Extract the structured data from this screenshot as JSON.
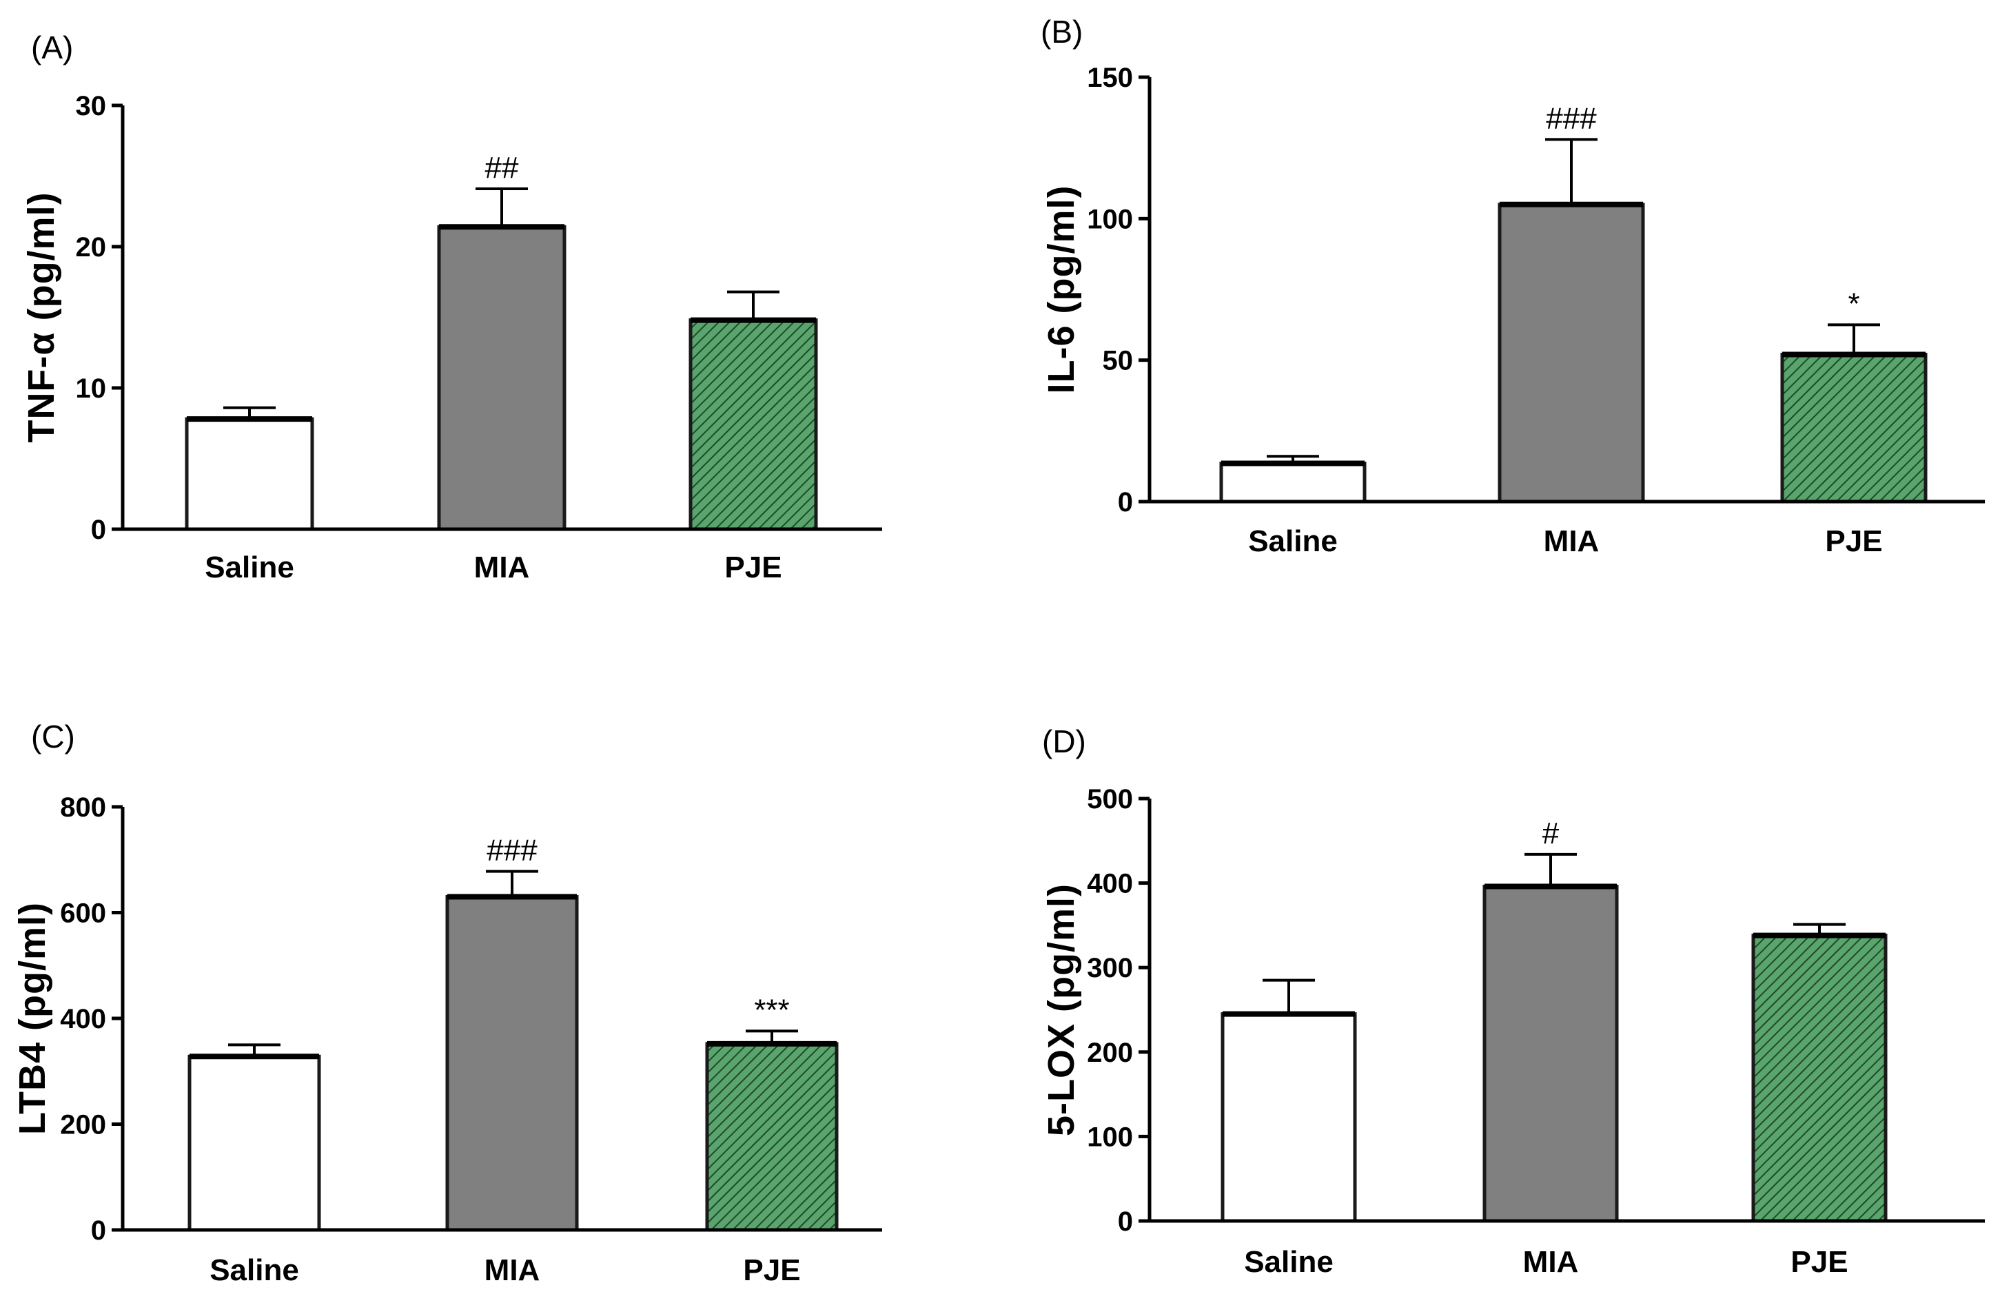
{
  "figure": {
    "panel_count": 4
  },
  "colors": {
    "saline": "#ffffff",
    "mia": "#808080",
    "pje_fill": "#5aa46e",
    "pje_hatch": "#1e4a28",
    "axis": "#000000"
  },
  "chart_data": [
    {
      "type": "bar",
      "panel_label": "(A)",
      "ylabel": "TNF-α (pg/ml)",
      "categories": [
        "Saline",
        "MIA",
        "PJE"
      ],
      "values": [
        7.8,
        21.4,
        14.8
      ],
      "errors": [
        0.8,
        2.7,
        2.0
      ],
      "significance": [
        "",
        "##",
        ""
      ],
      "ylim": [
        0,
        30
      ],
      "yticks": [
        0,
        10,
        20,
        30
      ]
    },
    {
      "type": "bar",
      "panel_label": "(B)",
      "ylabel": "IL-6 (pg/ml)",
      "categories": [
        "Saline",
        "MIA",
        "PJE"
      ],
      "values": [
        13.5,
        105,
        52
      ],
      "errors": [
        2.5,
        23,
        10.5
      ],
      "significance": [
        "",
        "###",
        "*"
      ],
      "ylim": [
        0,
        150
      ],
      "yticks": [
        0,
        50,
        100,
        150
      ]
    },
    {
      "type": "bar",
      "panel_label": "(C)",
      "ylabel": "LTB4 (pg/ml)",
      "categories": [
        "Saline",
        "MIA",
        "PJE"
      ],
      "values": [
        328,
        630,
        352
      ],
      "errors": [
        22,
        48,
        24
      ],
      "significance": [
        "",
        "###",
        "***"
      ],
      "ylim": [
        0,
        800
      ],
      "yticks": [
        0,
        200,
        400,
        600,
        800
      ]
    },
    {
      "type": "bar",
      "panel_label": "(D)",
      "ylabel": "5-LOX (pg/ml)",
      "categories": [
        "Saline",
        "MIA",
        "PJE"
      ],
      "values": [
        245,
        396,
        338
      ],
      "errors": [
        40,
        38,
        13
      ],
      "significance": [
        "",
        "#",
        ""
      ],
      "ylim": [
        0,
        500
      ],
      "yticks": [
        0,
        100,
        200,
        300,
        400,
        500
      ]
    }
  ]
}
